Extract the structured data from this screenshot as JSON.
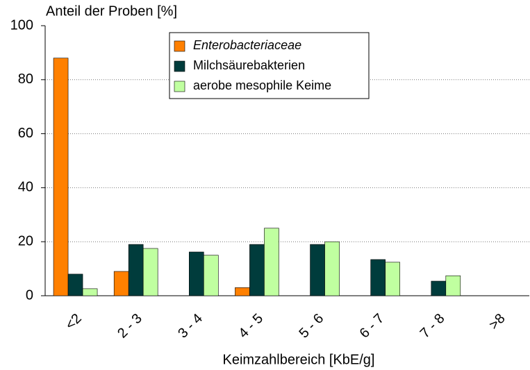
{
  "chart_data": {
    "type": "bar",
    "y_label": "Anteil der Proben [%]",
    "x_label": "Keimzahlbereich [KbE/g]",
    "categories": [
      "<2",
      "2 - 3",
      "3 - 4",
      "4 - 5",
      "5 - 6",
      "6 - 7",
      "7 - 8",
      ">8"
    ],
    "series": [
      {
        "name": "Enterobacteriaceae",
        "color": "#ff8000",
        "italic": true,
        "values": [
          88,
          9,
          0,
          3,
          0,
          0,
          0,
          0
        ]
      },
      {
        "name": "Milchsäurebakterien",
        "color": "#003c3c",
        "values": [
          8,
          19,
          16.2,
          19,
          19,
          13.4,
          5.4,
          0
        ]
      },
      {
        "name": "aerobe mesophile Keime",
        "color": "#c0ffa0",
        "values": [
          2.6,
          17.5,
          15,
          25,
          20,
          12.4,
          7.4,
          0
        ]
      }
    ],
    "ylim": [
      0,
      100
    ],
    "yticks": [
      0,
      20,
      40,
      60,
      80,
      100
    ],
    "grid": true,
    "legend": "top"
  }
}
